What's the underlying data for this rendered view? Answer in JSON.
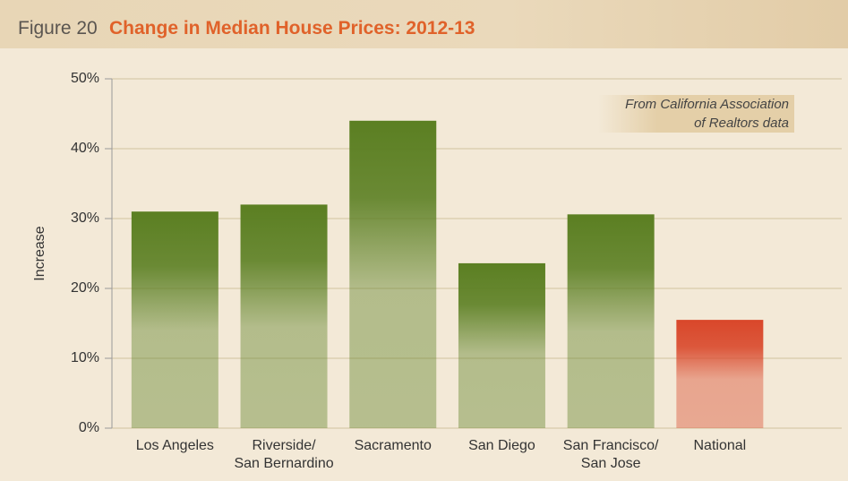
{
  "chart_data": {
    "type": "bar",
    "figure_label": "Figure 20",
    "title": "Change in Median House Prices: 2012-13",
    "y_label": "Increase",
    "annotation": "From California Association\nof Realtors data",
    "categories": [
      "Los Angeles",
      "Riverside/\nSan Bernardino",
      "Sacramento",
      "San Diego",
      "San Francisco/\nSan Jose",
      "National"
    ],
    "values": [
      31,
      32,
      44,
      23.6,
      30.6,
      15.5
    ],
    "colors": [
      "#5b7f22",
      "#5b7f22",
      "#5b7f22",
      "#5b7f22",
      "#5b7f22",
      "#d9472a"
    ],
    "ylim": [
      0,
      50
    ],
    "yticks": [
      {
        "value": 0,
        "label": "0%"
      },
      {
        "value": 10,
        "label": "10%"
      },
      {
        "value": 20,
        "label": "20%"
      },
      {
        "value": 30,
        "label": "30%"
      },
      {
        "value": 40,
        "label": "40%"
      },
      {
        "value": 50,
        "label": "50%"
      }
    ],
    "grid": true
  }
}
